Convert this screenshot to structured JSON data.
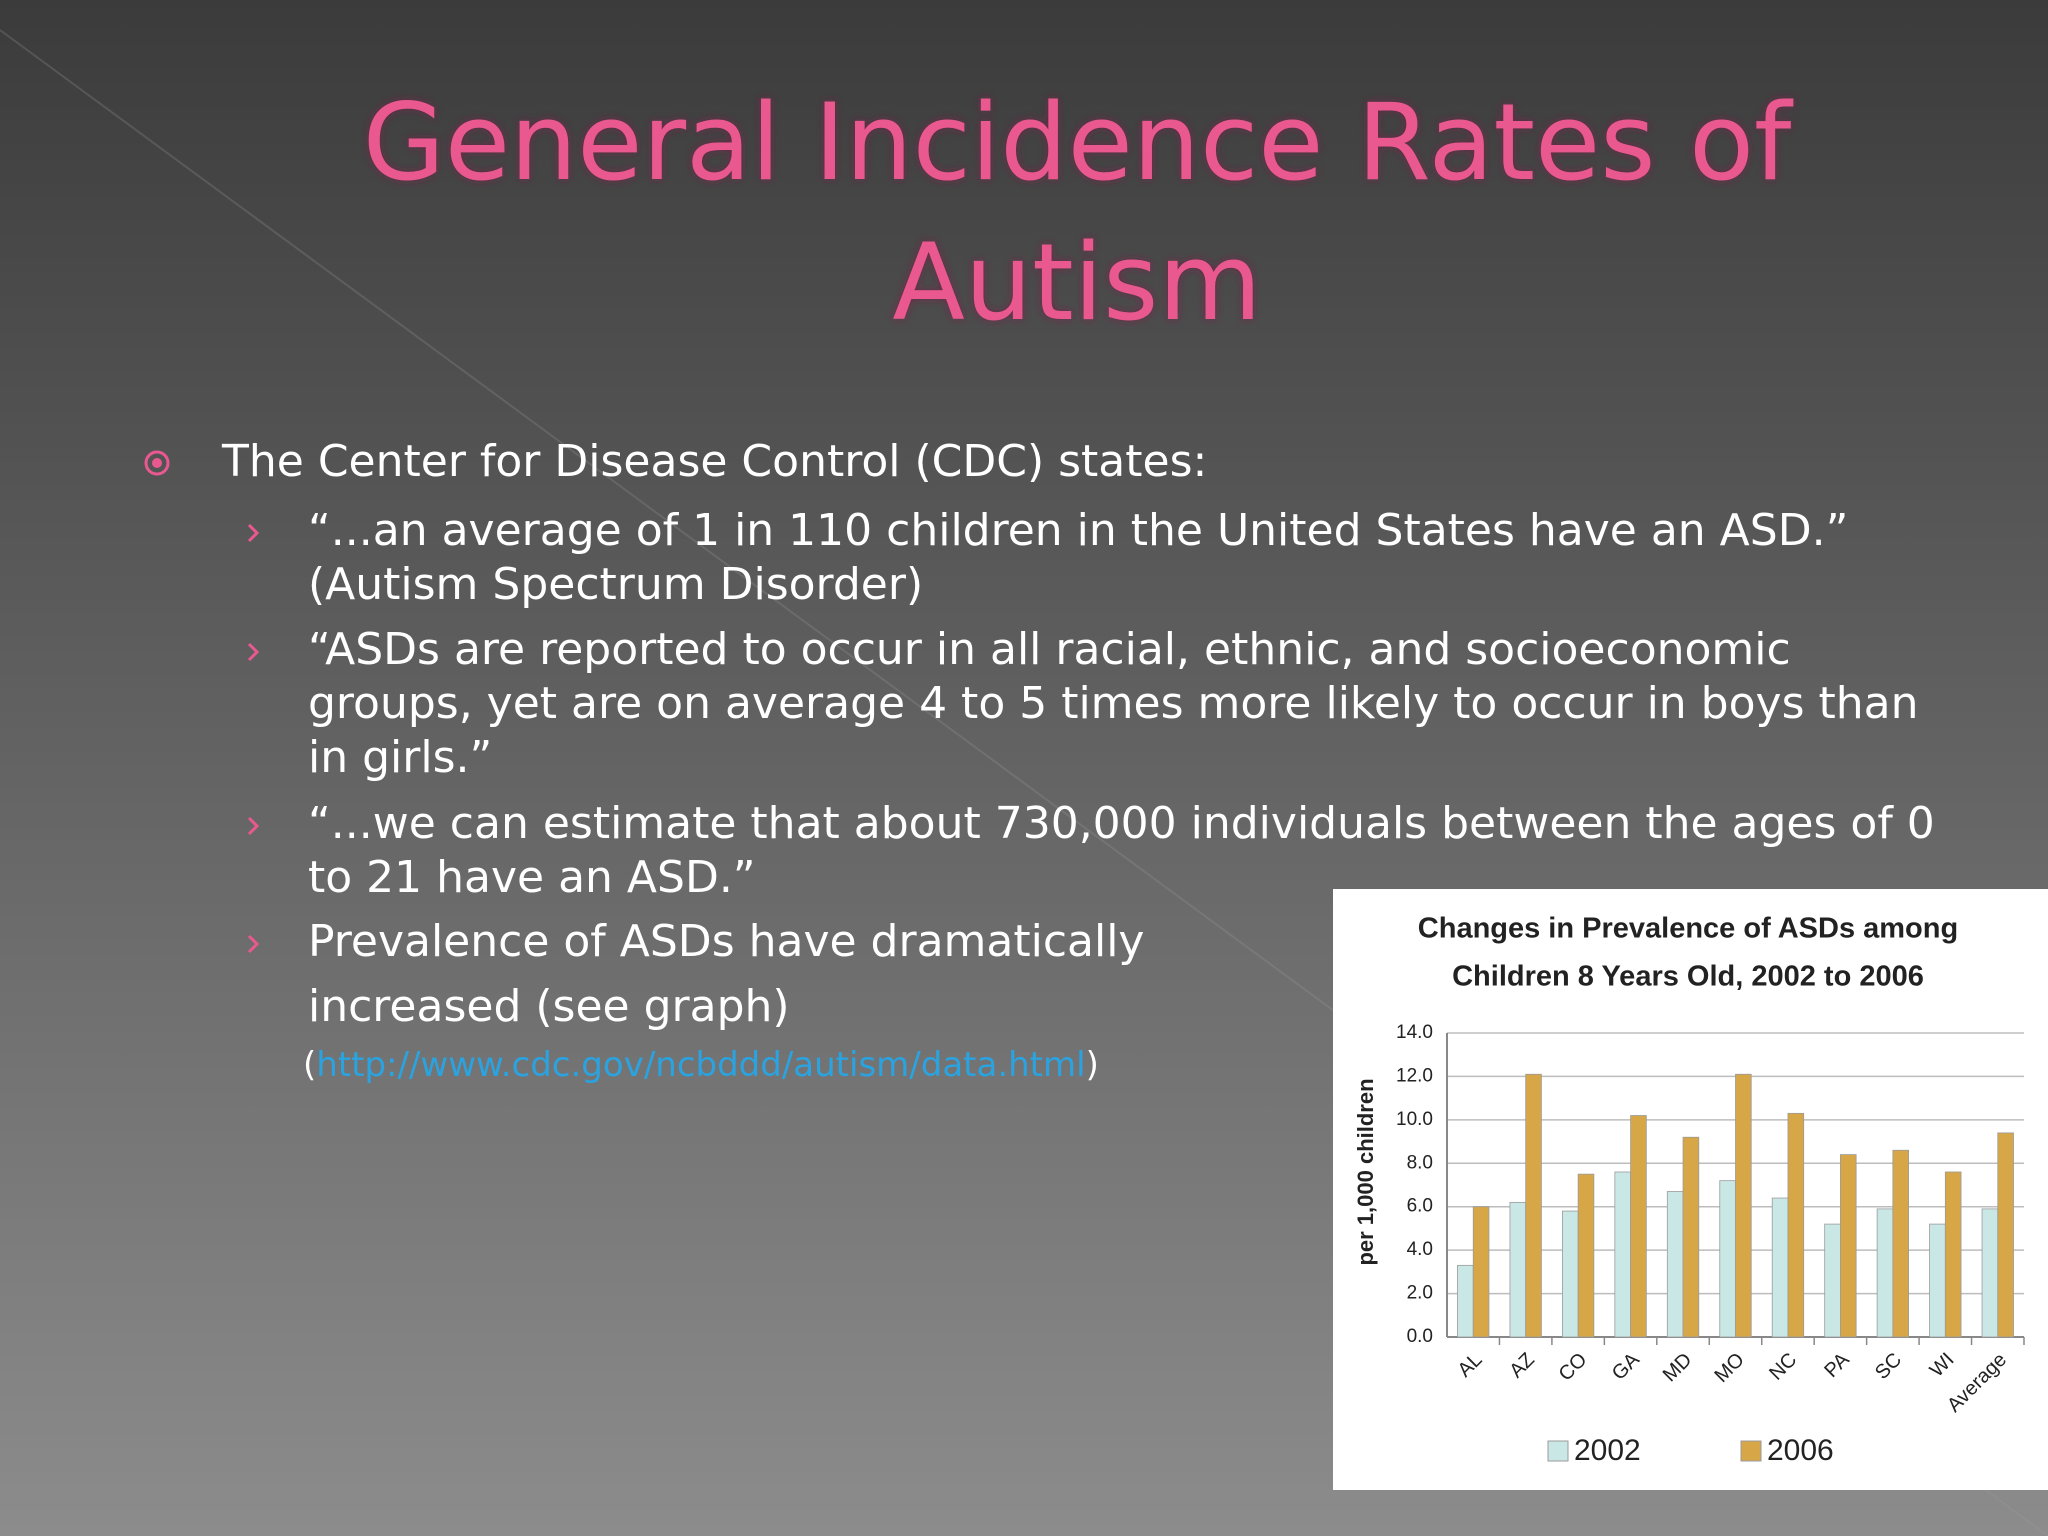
{
  "title": [
    "General Incidence Rates of",
    "Autism"
  ],
  "bullet": "The Center for Disease Control (CDC) states:",
  "sub_bullets": [
    {
      "lines": [
        "“...an average of 1 in 110 children in the United States have an ASD.”",
        "(Autism Spectrum Disorder)"
      ]
    },
    {
      "lines": [
        "“ASDs are reported to occur in all racial, ethnic, and socioeconomic",
        "groups, yet are on average 4 to 5 times more likely to occur in boys than",
        "in girls.”"
      ]
    },
    {
      "lines": [
        "“...we can estimate that about 730,000 individuals between the ages of 0",
        "to 21 have an ASD.”"
      ]
    },
    {
      "lines": [
        "Prevalence of ASDs have dramatically",
        "increased (see graph)"
      ]
    }
  ],
  "source": {
    "open": "(",
    "url": "http://www.cdc.gov/ncbddd/autism/data.html",
    "close": ")"
  },
  "chart_data": {
    "type": "bar",
    "title": [
      "Changes in Prevalence of ASDs among",
      "Children 8 Years Old, 2002 to 2006"
    ],
    "y_label": "per 1,000 children",
    "categories": [
      "AL",
      "AZ",
      "CO",
      "GA",
      "MD",
      "MO",
      "NC",
      "PA",
      "SC",
      "WI",
      "Average"
    ],
    "series": [
      {
        "name": "2002",
        "color": "#c9e7e5",
        "values": [
          3.3,
          6.2,
          5.8,
          7.6,
          6.7,
          7.2,
          6.4,
          5.2,
          5.9,
          5.2,
          5.9
        ]
      },
      {
        "name": "2006",
        "color": "#d6a647",
        "values": [
          6.0,
          12.1,
          7.5,
          10.2,
          9.2,
          12.1,
          10.3,
          8.4,
          8.6,
          7.6,
          9.4
        ]
      }
    ],
    "ylim": [
      0,
      14
    ],
    "yticks": [
      {
        "value": 0,
        "label": "0.0"
      },
      {
        "value": 2,
        "label": "2.0"
      },
      {
        "value": 4,
        "label": "4.0"
      },
      {
        "value": 6,
        "label": "6.0"
      },
      {
        "value": 8,
        "label": "8.0"
      },
      {
        "value": 10,
        "label": "10.0"
      },
      {
        "value": 12,
        "label": "12.0"
      },
      {
        "value": 14,
        "label": "14.0"
      }
    ],
    "grid": true
  }
}
